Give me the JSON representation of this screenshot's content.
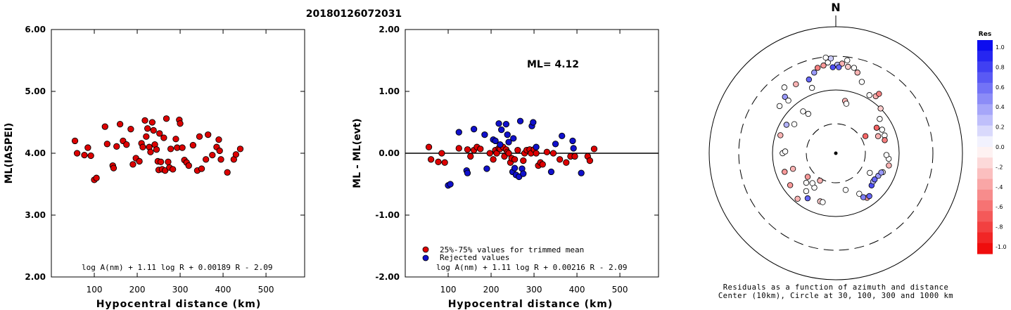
{
  "title": "20180126072031",
  "chart_data": [
    {
      "type": "scatter",
      "ylabel": "ML(IASPEI)",
      "xlabel": "Hypocentral distance (km)",
      "x_ticks": [
        "100",
        "200",
        "300",
        "400",
        "500"
      ],
      "y_ticks": [
        "2.00",
        "3.00",
        "4.00",
        "5.00",
        "6.00"
      ],
      "xlim": [
        0,
        590
      ],
      "ylim": [
        2.0,
        6.0
      ],
      "formula": "log A(nm) + 1.11 log R + 0.00189 R - 2.09",
      "marker_color": "#dd0000",
      "points": [
        [
          55,
          4.2
        ],
        [
          60,
          4.0
        ],
        [
          77,
          3.97
        ],
        [
          85,
          4.09
        ],
        [
          92,
          3.96
        ],
        [
          100,
          3.57
        ],
        [
          105,
          3.6
        ],
        [
          125,
          4.43
        ],
        [
          130,
          4.15
        ],
        [
          143,
          3.8
        ],
        [
          145,
          3.76
        ],
        [
          152,
          4.11
        ],
        [
          160,
          4.47
        ],
        [
          167,
          4.2
        ],
        [
          175,
          4.14
        ],
        [
          185,
          4.39
        ],
        [
          190,
          3.82
        ],
        [
          197,
          3.92
        ],
        [
          205,
          3.87
        ],
        [
          210,
          4.16
        ],
        [
          213,
          4.1
        ],
        [
          218,
          4.53
        ],
        [
          221,
          4.27
        ],
        [
          224,
          4.4
        ],
        [
          228,
          4.1
        ],
        [
          231,
          4.02
        ],
        [
          235,
          4.5
        ],
        [
          238,
          4.37
        ],
        [
          241,
          4.14
        ],
        [
          245,
          4.06
        ],
        [
          248,
          3.87
        ],
        [
          250,
          3.73
        ],
        [
          252,
          4.32
        ],
        [
          255,
          3.86
        ],
        [
          258,
          3.74
        ],
        [
          262,
          4.25
        ],
        [
          265,
          3.72
        ],
        [
          268,
          4.56
        ],
        [
          272,
          3.86
        ],
        [
          275,
          3.77
        ],
        [
          278,
          4.07
        ],
        [
          283,
          3.74
        ],
        [
          290,
          4.23
        ],
        [
          293,
          4.09
        ],
        [
          298,
          4.54
        ],
        [
          300,
          4.48
        ],
        [
          305,
          4.09
        ],
        [
          310,
          3.89
        ],
        [
          315,
          3.85
        ],
        [
          320,
          3.8
        ],
        [
          330,
          4.13
        ],
        [
          340,
          3.72
        ],
        [
          345,
          4.27
        ],
        [
          350,
          3.75
        ],
        [
          360,
          3.9
        ],
        [
          365,
          4.3
        ],
        [
          375,
          3.97
        ],
        [
          385,
          4.1
        ],
        [
          390,
          4.22
        ],
        [
          392,
          4.04
        ],
        [
          395,
          3.9
        ],
        [
          410,
          3.69
        ],
        [
          425,
          3.9
        ],
        [
          430,
          3.98
        ],
        [
          440,
          4.07
        ]
      ]
    },
    {
      "type": "scatter",
      "ylabel": "ML - ML(evt)",
      "xlabel": "Hypocentral distance (km)",
      "x_ticks": [
        "100",
        "200",
        "300",
        "400",
        "500"
      ],
      "y_ticks": [
        "-2.00",
        "-1.00",
        "0.00",
        "1.00",
        "2.00"
      ],
      "xlim": [
        0,
        590
      ],
      "ylim": [
        -2.0,
        2.0
      ],
      "ml_label": "ML= 4.12",
      "legend": [
        "25%-75% values for trimmed mean",
        "Rejected values"
      ],
      "legend_colors": [
        "#dd0000",
        "#1010cc"
      ],
      "formula": "log A(nm) + 1.11 log R + 0.00216 R - 2.09",
      "accepted": [
        [
          55,
          0.1
        ],
        [
          60,
          -0.1
        ],
        [
          77,
          -0.14
        ],
        [
          85,
          0.0
        ],
        [
          92,
          -0.15
        ],
        [
          125,
          0.08
        ],
        [
          145,
          0.06
        ],
        [
          152,
          -0.05
        ],
        [
          160,
          0.05
        ],
        [
          167,
          0.1
        ],
        [
          175,
          0.07
        ],
        [
          197,
          0.0
        ],
        [
          205,
          -0.1
        ],
        [
          210,
          0.05
        ],
        [
          213,
          0.0
        ],
        [
          218,
          0.08
        ],
        [
          221,
          0.07
        ],
        [
          228,
          0.1
        ],
        [
          231,
          -0.05
        ],
        [
          235,
          0.06
        ],
        [
          238,
          0.02
        ],
        [
          241,
          0.0
        ],
        [
          245,
          -0.15
        ],
        [
          248,
          -0.08
        ],
        [
          255,
          -0.1
        ],
        [
          262,
          0.05
        ],
        [
          275,
          -0.12
        ],
        [
          278,
          0.0
        ],
        [
          283,
          0.05
        ],
        [
          290,
          0.06
        ],
        [
          293,
          0.0
        ],
        [
          300,
          0.06
        ],
        [
          305,
          0.0
        ],
        [
          310,
          -0.2
        ],
        [
          315,
          -0.15
        ],
        [
          320,
          -0.18
        ],
        [
          330,
          0.02
        ],
        [
          345,
          0.0
        ],
        [
          360,
          -0.1
        ],
        [
          375,
          -0.15
        ],
        [
          385,
          -0.05
        ],
        [
          395,
          -0.05
        ],
        [
          425,
          -0.05
        ],
        [
          430,
          -0.12
        ],
        [
          440,
          0.07
        ]
      ],
      "rejected": [
        [
          100,
          -0.52
        ],
        [
          105,
          -0.5
        ],
        [
          125,
          0.34
        ],
        [
          143,
          -0.28
        ],
        [
          145,
          -0.32
        ],
        [
          160,
          0.39
        ],
        [
          185,
          0.3
        ],
        [
          190,
          -0.25
        ],
        [
          205,
          0.22
        ],
        [
          210,
          0.2
        ],
        [
          218,
          0.48
        ],
        [
          221,
          0.14
        ],
        [
          224,
          0.38
        ],
        [
          235,
          0.47
        ],
        [
          238,
          0.3
        ],
        [
          241,
          0.18
        ],
        [
          250,
          -0.3
        ],
        [
          252,
          0.24
        ],
        [
          255,
          -0.24
        ],
        [
          258,
          -0.35
        ],
        [
          265,
          -0.38
        ],
        [
          268,
          0.52
        ],
        [
          272,
          -0.25
        ],
        [
          275,
          -0.33
        ],
        [
          295,
          0.44
        ],
        [
          298,
          0.5
        ],
        [
          305,
          0.1
        ],
        [
          340,
          -0.3
        ],
        [
          350,
          0.15
        ],
        [
          365,
          0.28
        ],
        [
          390,
          0.2
        ],
        [
          392,
          0.08
        ],
        [
          410,
          -0.32
        ]
      ]
    },
    {
      "type": "polar-scatter",
      "north_label": "N",
      "caption_line1": "Residuals as a function of azimuth and distance",
      "caption_line2": "Center (10km), Circle at 30, 100, 300 and 1000 km",
      "colorbar_title": "Res",
      "colorbar_ticks": [
        "1.0",
        "0.8",
        "0.6",
        "0.4",
        "0.2",
        "0.0",
        "-.2",
        "-.4",
        "-.6",
        "-.8",
        "-1.0"
      ],
      "color_positive": "#0000ee",
      "color_negative": "#ee0000",
      "points": [
        [
          1,
          0.7,
          0.3
        ],
        [
          4,
          0.71,
          -0.3
        ],
        [
          8,
          0.69,
          -0.2
        ],
        [
          352,
          0.7,
          -0.4
        ],
        [
          355,
          0.72,
          0.0
        ],
        [
          348,
          0.69,
          -0.5
        ],
        [
          12,
          0.69,
          0.0
        ],
        [
          358,
          0.68,
          0.7
        ],
        [
          2,
          0.68,
          0.6
        ],
        [
          345,
          0.66,
          0.4
        ],
        [
          15,
          0.66,
          -0.3
        ],
        [
          340,
          0.62,
          0.6
        ],
        [
          20,
          0.6,
          0.0
        ],
        [
          330,
          0.63,
          -0.3
        ],
        [
          322,
          0.66,
          0.0
        ],
        [
          318,
          0.6,
          0.4
        ],
        [
          318,
          0.56,
          0.0
        ],
        [
          310,
          0.58,
          0.0
        ],
        [
          30,
          0.53,
          0.0
        ],
        [
          35,
          0.55,
          -0.3
        ],
        [
          36,
          0.58,
          -0.5
        ],
        [
          45,
          0.5,
          -0.2
        ],
        [
          52,
          0.44,
          0.0
        ],
        [
          58,
          0.38,
          -0.6
        ],
        [
          63,
          0.41,
          0.0
        ],
        [
          68,
          0.36,
          -0.3
        ],
        [
          70,
          0.41,
          0.0
        ],
        [
          75,
          0.4,
          -0.5
        ],
        [
          60,
          0.27,
          -0.6
        ],
        [
          288,
          0.46,
          -0.3
        ],
        [
          300,
          0.45,
          0.3
        ],
        [
          270,
          0.42,
          0.0
        ],
        [
          272,
          0.4,
          0.0
        ],
        [
          250,
          0.43,
          -0.4
        ],
        [
          250,
          0.36,
          -0.3
        ],
        [
          235,
          0.44,
          -0.4
        ],
        [
          220,
          0.47,
          -0.3
        ],
        [
          212,
          0.42,
          0.6
        ],
        [
          218,
          0.38,
          0.0
        ],
        [
          225,
          0.33,
          0.0
        ],
        [
          230,
          0.29,
          -0.4
        ],
        [
          212,
          0.32,
          0.0
        ],
        [
          218,
          0.3,
          0.0
        ],
        [
          210,
          0.25,
          -0.3
        ],
        [
          198,
          0.4,
          -0.2
        ],
        [
          195,
          0.4,
          0.0
        ],
        [
          165,
          0.3,
          0.0
        ],
        [
          150,
          0.37,
          0.0
        ],
        [
          145,
          0.43,
          -0.4
        ],
        [
          142,
          0.43,
          0.6
        ],
        [
          148,
          0.41,
          0.5
        ],
        [
          132,
          0.38,
          0.7
        ],
        [
          127,
          0.37,
          0.3
        ],
        [
          124,
          0.37,
          0.6
        ],
        [
          120,
          0.31,
          0.0
        ],
        [
          118,
          0.38,
          0.4
        ],
        [
          112,
          0.4,
          0.0
        ],
        [
          113,
          0.39,
          0.4
        ],
        [
          103,
          0.43,
          -0.3
        ],
        [
          96,
          0.42,
          0.0
        ],
        [
          92,
          0.4,
          0.0
        ],
        [
          10,
          0.42,
          -0.3
        ],
        [
          325,
          0.38,
          0.0
        ],
        [
          305,
          0.4,
          0.0
        ],
        [
          322,
          0.42,
          0.0
        ],
        [
          340,
          0.55,
          0.0
        ],
        [
          12,
          0.4,
          0.0
        ],
        [
          354,
          0.76,
          0.0
        ],
        [
          357,
          0.75,
          0.2
        ],
        [
          7,
          0.74,
          0.0
        ]
      ]
    }
  ]
}
